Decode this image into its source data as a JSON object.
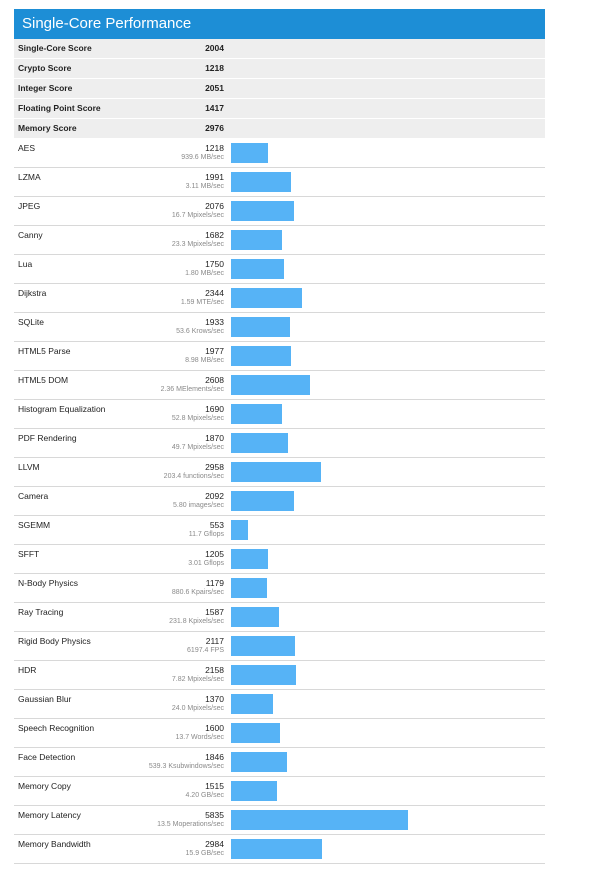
{
  "header": {
    "title": "Single-Core Performance"
  },
  "summary": [
    {
      "label": "Single-Core Score",
      "value": "2004"
    },
    {
      "label": "Crypto Score",
      "value": "1218"
    },
    {
      "label": "Integer Score",
      "value": "2051"
    },
    {
      "label": "Floating Point Score",
      "value": "1417"
    },
    {
      "label": "Memory Score",
      "value": "2976"
    }
  ],
  "colors": {
    "header_bg": "#1d8ed6",
    "bar": "#56b3f6",
    "summary_bg": "#eeeeee"
  },
  "chart_data": {
    "type": "bar",
    "orientation": "horizontal",
    "categories": [
      "AES",
      "LZMA",
      "JPEG",
      "Canny",
      "Lua",
      "Dijkstra",
      "SQLite",
      "HTML5 Parse",
      "HTML5 DOM",
      "Histogram Equalization",
      "PDF Rendering",
      "LLVM",
      "Camera",
      "SGEMM",
      "SFFT",
      "N-Body Physics",
      "Ray Tracing",
      "Rigid Body Physics",
      "HDR",
      "Gaussian Blur",
      "Speech Recognition",
      "Face Detection",
      "Memory Copy",
      "Memory Latency",
      "Memory Bandwidth"
    ],
    "values": [
      1218,
      1991,
      2076,
      1682,
      1750,
      2344,
      1933,
      1977,
      2608,
      1690,
      1870,
      2958,
      2092,
      553,
      1205,
      1179,
      1587,
      2117,
      2158,
      1370,
      1600,
      1846,
      1515,
      5835,
      2984
    ],
    "details": [
      "939.6 MB/sec",
      "3.11 MB/sec",
      "16.7 Mpixels/sec",
      "23.3 Mpixels/sec",
      "1.80 MB/sec",
      "1.59 MTE/sec",
      "53.6 Krows/sec",
      "8.98 MB/sec",
      "2.36 MElements/sec",
      "52.8 Mpixels/sec",
      "49.7 Mpixels/sec",
      "203.4 functions/sec",
      "5.80 images/sec",
      "11.7 Gflops",
      "3.01 Gflops",
      "880.6 Kpairs/sec",
      "231.8 Kpixels/sec",
      "6197.4 FPS",
      "7.82 Mpixels/sec",
      "24.0 Mpixels/sec",
      "13.7 Words/sec",
      "539.3 Ksubwindows/sec",
      "4.20 GB/sec",
      "13.5 Moperations/sec",
      "15.9 GB/sec"
    ],
    "xlim": [
      0,
      5835
    ],
    "grid": false,
    "legend": "none"
  }
}
